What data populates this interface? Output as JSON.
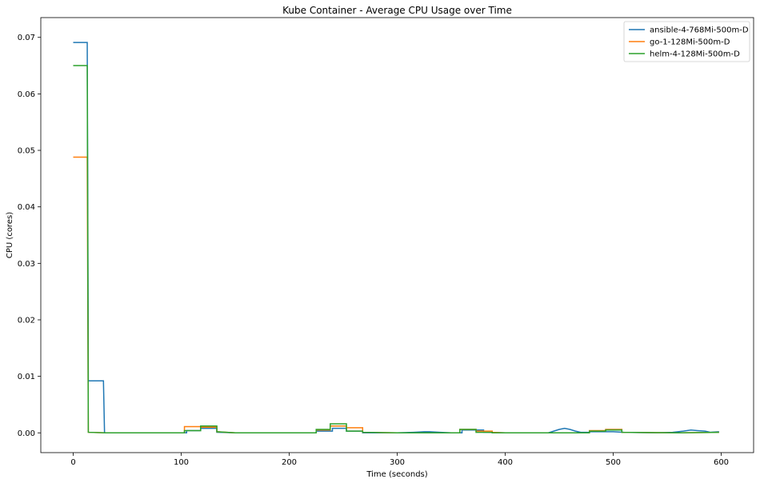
{
  "chart_data": {
    "type": "line",
    "title": "Kube Container - Average CPU Usage over Time",
    "xlabel": "Time (seconds)",
    "ylabel": "CPU (cores)",
    "xlim": [
      -30,
      630
    ],
    "ylim": [
      -0.0035,
      0.0735
    ],
    "xticks": [
      0,
      100,
      200,
      300,
      400,
      500,
      600
    ],
    "xtick_labels": [
      "0",
      "100",
      "200",
      "300",
      "400",
      "500",
      "600"
    ],
    "yticks": [
      0.0,
      0.01,
      0.02,
      0.03,
      0.04,
      0.05,
      0.06,
      0.07
    ],
    "ytick_labels": [
      "0.00",
      "0.01",
      "0.02",
      "0.03",
      "0.04",
      "0.05",
      "0.06",
      "0.07"
    ],
    "grid": false,
    "legend_position": "top-right",
    "series": [
      {
        "name": "ansible-4-768Mi-500m-D",
        "color": "#1f77b4",
        "x": [
          0,
          13,
          13,
          14,
          14,
          28,
          28,
          29,
          30,
          105,
          105,
          118,
          118,
          133,
          133,
          150,
          225,
          225,
          240,
          240,
          253,
          253,
          268,
          268,
          300,
          315,
          325,
          330,
          340,
          350,
          360,
          360,
          380,
          380,
          400,
          440,
          445,
          450,
          455,
          460,
          465,
          470,
          478,
          478,
          500,
          510,
          540,
          555,
          565,
          572,
          578,
          585,
          590,
          598
        ],
        "y": [
          0.0691,
          0.0691,
          0.0691,
          0.0092,
          0.0092,
          0.0092,
          0.0092,
          0.0001,
          0.0,
          0.0,
          0.0004,
          0.0004,
          0.0008,
          0.0008,
          0.0001,
          0.0,
          0.0,
          0.0003,
          0.0003,
          0.0008,
          0.0008,
          0.0003,
          0.0003,
          0.0,
          0.0,
          0.0001,
          0.0002,
          0.0002,
          0.0001,
          0.0,
          0.0,
          0.0005,
          0.0005,
          0.0001,
          0.0,
          0.0,
          0.0003,
          0.0006,
          0.0008,
          0.0006,
          0.0003,
          0.0001,
          0.0001,
          0.0002,
          0.0002,
          0.0001,
          0.0,
          0.0001,
          0.0003,
          0.0005,
          0.0004,
          0.0003,
          0.0001,
          0.0002
        ]
      },
      {
        "name": "go-1-128Mi-500m-D",
        "color": "#ff7f0e",
        "x": [
          0,
          13,
          13,
          14,
          30,
          103,
          103,
          118,
          118,
          133,
          133,
          150,
          225,
          225,
          238,
          238,
          253,
          253,
          268,
          268,
          300,
          358,
          358,
          373,
          373,
          388,
          388,
          400,
          478,
          478,
          493,
          493,
          508,
          508,
          560,
          598
        ],
        "y": [
          0.0488,
          0.0488,
          0.0488,
          0.0001,
          0.0,
          0.0,
          0.0011,
          0.0011,
          0.001,
          0.001,
          0.0002,
          0.0,
          0.0,
          0.0005,
          0.0005,
          0.0012,
          0.0012,
          0.0009,
          0.0009,
          0.0001,
          0.0,
          0.0,
          0.0006,
          0.0006,
          0.0003,
          0.0003,
          0.0001,
          0.0,
          0.0,
          0.0004,
          0.0004,
          0.0006,
          0.0006,
          0.0001,
          0.0,
          0.0001
        ]
      },
      {
        "name": "helm-4-128Mi-500m-D",
        "color": "#2ca02c",
        "x": [
          0,
          13,
          13,
          14,
          30,
          103,
          103,
          118,
          118,
          133,
          133,
          150,
          225,
          225,
          238,
          238,
          253,
          253,
          268,
          268,
          300,
          358,
          358,
          373,
          373,
          388,
          388,
          400,
          478,
          478,
          493,
          493,
          508,
          508,
          560,
          598
        ],
        "y": [
          0.065,
          0.065,
          0.065,
          0.0001,
          0.0,
          0.0,
          0.0004,
          0.0004,
          0.0012,
          0.0012,
          0.0002,
          0.0,
          0.0,
          0.0006,
          0.0006,
          0.0016,
          0.0016,
          0.0003,
          0.0003,
          0.0001,
          0.0,
          0.0,
          0.0006,
          0.0006,
          0.0001,
          0.0001,
          0.0,
          0.0,
          0.0,
          0.0003,
          0.0003,
          0.0005,
          0.0005,
          0.0001,
          0.0,
          0.0001
        ]
      }
    ]
  }
}
